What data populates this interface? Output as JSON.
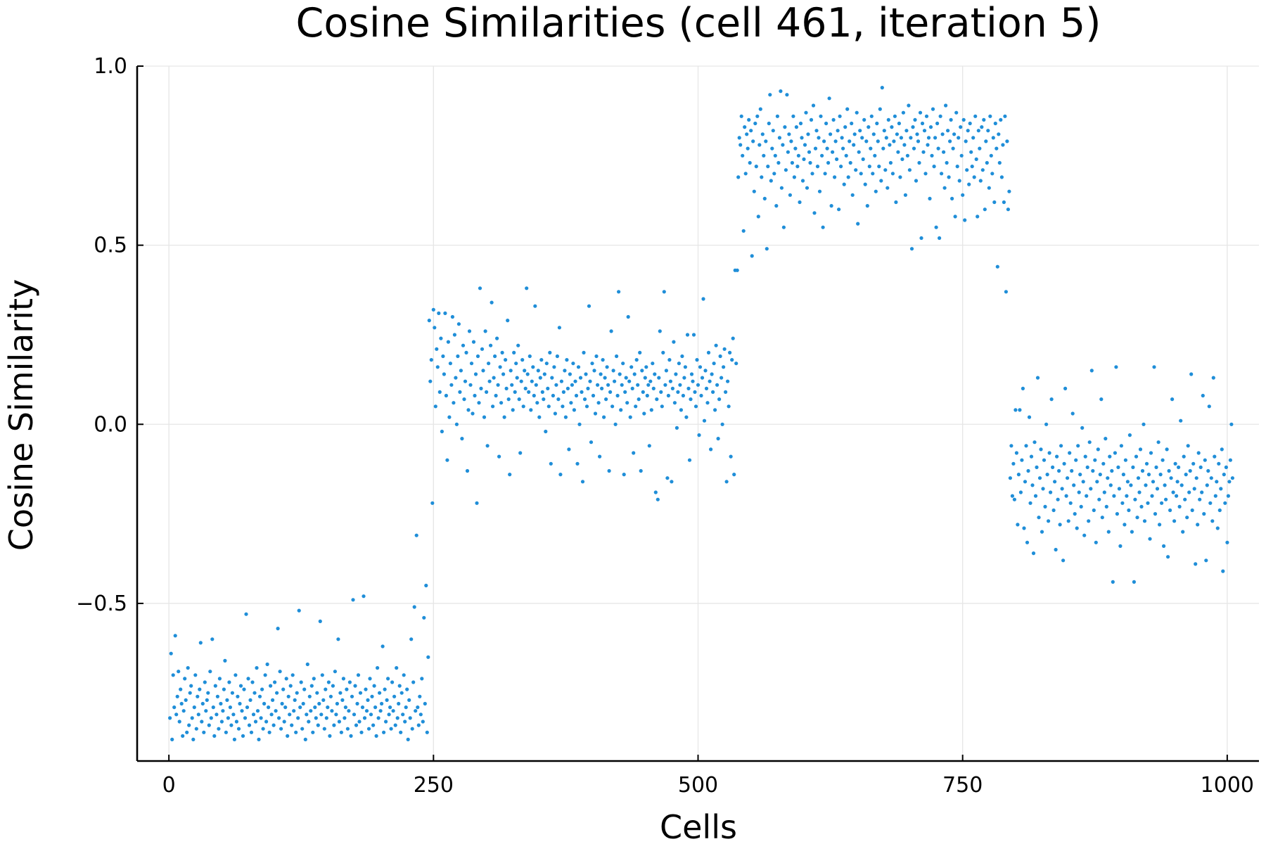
{
  "chart_data": {
    "type": "scatter",
    "title": "Cosine Similarities (cell 461, iteration 5)",
    "xlabel": "Cells",
    "ylabel": "Cosine Similarity",
    "xlim": [
      -30,
      1030
    ],
    "ylim": [
      -0.94,
      1.0
    ],
    "xticks": [
      0,
      250,
      500,
      750,
      1000
    ],
    "xtick_labels": [
      "0",
      "250",
      "500",
      "750",
      "1000"
    ],
    "yticks": [
      -0.5,
      0.0,
      0.5,
      1.0
    ],
    "ytick_labels": [
      "−0.5",
      "0.0",
      "0.5",
      "1.0"
    ],
    "grid": true,
    "legend": "none",
    "point_color": "#1f8ed8",
    "series": [
      {
        "x_start": 1,
        "x_step": 1,
        "values": [
          -0.82,
          -0.64,
          -0.88,
          -0.7,
          -0.79,
          -0.59,
          -0.81,
          -0.76,
          -0.69,
          -0.83,
          -0.74,
          -0.78,
          -0.87,
          -0.8,
          -0.71,
          -0.77,
          -0.86,
          -0.68,
          -0.84,
          -0.75,
          -0.73,
          -0.82,
          -0.88,
          -0.79,
          -0.7,
          -0.85,
          -0.76,
          -0.81,
          -0.74,
          -0.61,
          -0.83,
          -0.78,
          -0.86,
          -0.72,
          -0.8,
          -0.77,
          -0.75,
          -0.84,
          -0.69,
          -0.82,
          -0.6,
          -0.79,
          -0.87,
          -0.73,
          -0.81,
          -0.76,
          -0.85,
          -0.71,
          -0.78,
          -0.83,
          -0.8,
          -0.74,
          -0.66,
          -0.86,
          -0.77,
          -0.82,
          -0.72,
          -0.79,
          -0.84,
          -0.75,
          -0.81,
          -0.88,
          -0.7,
          -0.83,
          -0.76,
          -0.85,
          -0.78,
          -0.73,
          -0.8,
          -0.87,
          -0.74,
          -0.82,
          -0.53,
          -0.79,
          -0.71,
          -0.84,
          -0.77,
          -0.86,
          -0.72,
          -0.81,
          -0.75,
          -0.83,
          -0.68,
          -0.8,
          -0.88,
          -0.76,
          -0.82,
          -0.74,
          -0.85,
          -0.78,
          -0.7,
          -0.83,
          -0.67,
          -0.79,
          -0.86,
          -0.73,
          -0.81,
          -0.77,
          -0.84,
          -0.72,
          -0.8,
          -0.75,
          -0.57,
          -0.82,
          -0.69,
          -0.85,
          -0.78,
          -0.74,
          -0.83,
          -0.79,
          -0.71,
          -0.87,
          -0.76,
          -0.81,
          -0.73,
          -0.84,
          -0.7,
          -0.8,
          -0.77,
          -0.86,
          -0.75,
          -0.82,
          -0.52,
          -0.79,
          -0.72,
          -0.85,
          -0.78,
          -0.74,
          -0.88,
          -0.81,
          -0.67,
          -0.83,
          -0.76,
          -0.8,
          -0.73,
          -0.86,
          -0.71,
          -0.79,
          -0.82,
          -0.75,
          -0.84,
          -0.78,
          -0.55,
          -0.81,
          -0.7,
          -0.77,
          -0.85,
          -0.74,
          -0.82,
          -0.79,
          -0.72,
          -0.87,
          -0.76,
          -0.8,
          -0.73,
          -0.84,
          -0.69,
          -0.81,
          -0.78,
          -0.6,
          -0.83,
          -0.75,
          -0.86,
          -0.77,
          -0.71,
          -0.82,
          -0.79,
          -0.74,
          -0.85,
          -0.8,
          -0.72,
          -0.87,
          -0.76,
          -0.49,
          -0.81,
          -0.73,
          -0.84,
          -0.78,
          -0.7,
          -0.83,
          -0.75,
          -0.86,
          -0.79,
          -0.48,
          -0.82,
          -0.74,
          -0.8,
          -0.77,
          -0.85,
          -0.71,
          -0.81,
          -0.76,
          -0.84,
          -0.73,
          -0.79,
          -0.87,
          -0.68,
          -0.82,
          -0.75,
          -0.8,
          -0.78,
          -0.62,
          -0.86,
          -0.74,
          -0.83,
          -0.77,
          -0.71,
          -0.81,
          -0.79,
          -0.85,
          -0.72,
          -0.8,
          -0.76,
          -0.84,
          -0.68,
          -0.82,
          -0.78,
          -0.73,
          -0.86,
          -0.75,
          -0.81,
          -0.7,
          -0.83,
          -0.79,
          -0.74,
          -0.88,
          -0.77,
          -0.82,
          -0.6,
          -0.85,
          -0.72,
          -0.51,
          -0.8,
          -0.31,
          -0.79,
          -0.84,
          -0.76,
          -0.81,
          -0.71,
          -0.83,
          -0.54,
          -0.78,
          -0.45,
          -0.86,
          -0.65,
          0.29,
          0.12,
          0.18,
          -0.22,
          0.32,
          0.27,
          0.05,
          0.21,
          0.16,
          0.31,
          0.09,
          0.24,
          -0.02,
          0.19,
          0.14,
          0.31,
          0.08,
          -0.1,
          0.23,
          0.02,
          0.17,
          0.11,
          0.3,
          0.06,
          0.25,
          0.13,
          0.0,
          0.19,
          0.28,
          0.09,
          0.15,
          -0.04,
          0.22,
          0.07,
          0.12,
          0.2,
          -0.13,
          0.04,
          0.26,
          0.11,
          0.17,
          0.03,
          0.23,
          0.08,
          0.14,
          -0.22,
          0.19,
          0.06,
          0.38,
          0.1,
          0.21,
          0.15,
          0.02,
          0.26,
          0.09,
          -0.06,
          0.17,
          0.12,
          0.22,
          0.34,
          0.05,
          0.13,
          0.19,
          0.08,
          0.24,
          0.11,
          -0.09,
          0.16,
          0.06,
          0.2,
          0.14,
          0.02,
          0.18,
          0.1,
          0.29,
          0.07,
          -0.14,
          0.15,
          0.11,
          0.04,
          0.2,
          0.09,
          0.17,
          0.13,
          0.22,
          0.07,
          -0.08,
          0.12,
          0.18,
          0.05,
          0.15,
          0.1,
          0.38,
          0.14,
          0.09,
          0.19,
          0.04,
          0.12,
          0.16,
          0.08,
          0.33,
          0.11,
          0.06,
          0.15,
          0.02,
          0.13,
          0.18,
          0.09,
          0.07,
          0.14,
          -0.02,
          0.17,
          0.1,
          0.05,
          0.2,
          -0.11,
          0.13,
          0.08,
          0.16,
          0.03,
          0.11,
          0.19,
          0.07,
          0.27,
          -0.14,
          0.12,
          0.05,
          0.09,
          0.15,
          0.02,
          0.18,
          0.1,
          -0.07,
          0.14,
          0.06,
          0.11,
          0.17,
          0.04,
          0.12,
          0.08,
          -0.11,
          0.16,
          0.0,
          0.13,
          0.09,
          -0.16,
          0.2,
          0.07,
          0.14,
          0.05,
          0.1,
          0.33,
          0.12,
          -0.05,
          0.17,
          0.08,
          0.15,
          0.03,
          0.19,
          0.11,
          0.06,
          -0.09,
          0.14,
          0.1,
          0.18,
          0.02,
          0.13,
          0.07,
          0.16,
          0.11,
          -0.13,
          0.09,
          0.26,
          0.05,
          0.15,
          0.12,
          0.0,
          0.19,
          0.08,
          0.37,
          0.14,
          0.04,
          0.11,
          0.17,
          -0.14,
          0.09,
          0.13,
          0.06,
          0.3,
          0.12,
          0.02,
          0.16,
          0.1,
          -0.08,
          0.14,
          0.05,
          0.18,
          0.11,
          0.07,
          0.2,
          -0.13,
          0.15,
          0.09,
          0.03,
          0.13,
          0.16,
          0.08,
          0.11,
          -0.06,
          0.12,
          0.04,
          0.17,
          0.1,
          0.14,
          -0.19,
          0.07,
          -0.21,
          0.13,
          0.26,
          0.09,
          0.05,
          0.2,
          0.37,
          0.11,
          0.15,
          -0.15,
          0.08,
          0.18,
          0.12,
          -0.16,
          0.1,
          0.23,
          0.06,
          0.14,
          -0.01,
          0.09,
          0.17,
          0.11,
          0.04,
          0.19,
          0.08,
          0.13,
          0.16,
          0.02,
          0.25,
          0.1,
          -0.1,
          0.07,
          0.14,
          0.12,
          0.25,
          0.09,
          0.05,
          0.18,
          0.11,
          -0.03,
          0.16,
          0.08,
          0.13,
          0.35,
          0.01,
          0.15,
          0.1,
          0.06,
          0.2,
          0.12,
          -0.07,
          0.14,
          0.09,
          0.17,
          0.04,
          0.22,
          0.11,
          -0.04,
          0.07,
          0.19,
          0.13,
          0.0,
          0.16,
          0.21,
          0.09,
          -0.16,
          0.12,
          0.05,
          0.2,
          -0.09,
          0.18,
          0.24,
          -0.14,
          0.43,
          0.17,
          0.43,
          0.69,
          0.8,
          0.78,
          0.86,
          0.75,
          0.54,
          0.83,
          0.7,
          0.81,
          0.77,
          0.85,
          0.73,
          0.82,
          0.47,
          0.79,
          0.65,
          0.84,
          0.72,
          0.86,
          0.58,
          0.78,
          0.88,
          0.69,
          0.81,
          0.75,
          0.63,
          0.79,
          0.49,
          0.72,
          0.84,
          0.92,
          0.68,
          0.77,
          0.82,
          0.7,
          0.75,
          0.61,
          0.86,
          0.73,
          0.8,
          0.93,
          0.66,
          0.78,
          0.55,
          0.83,
          0.71,
          0.92,
          0.76,
          0.81,
          0.64,
          0.79,
          0.73,
          0.86,
          0.69,
          0.77,
          0.83,
          0.72,
          0.75,
          0.62,
          0.84,
          0.8,
          0.68,
          0.74,
          0.78,
          0.87,
          0.66,
          0.81,
          0.76,
          0.73,
          0.85,
          0.7,
          0.89,
          0.59,
          0.77,
          0.82,
          0.72,
          0.8,
          0.65,
          0.86,
          0.75,
          0.55,
          0.79,
          0.7,
          0.84,
          0.77,
          0.73,
          0.91,
          0.81,
          0.61,
          0.76,
          0.85,
          0.69,
          0.79,
          0.74,
          0.82,
          0.6,
          0.86,
          0.72,
          0.8,
          0.77,
          0.67,
          0.83,
          0.75,
          0.88,
          0.69,
          0.79,
          0.73,
          0.84,
          0.64,
          0.78,
          0.81,
          0.71,
          0.87,
          0.56,
          0.76,
          0.82,
          0.7,
          0.8,
          0.74,
          0.85,
          0.67,
          0.79,
          0.61,
          0.83,
          0.72,
          0.77,
          0.86,
          0.7,
          0.81,
          0.75,
          0.65,
          0.84,
          0.79,
          0.72,
          0.88,
          0.68,
          0.94,
          0.77,
          0.82,
          0.71,
          0.8,
          0.66,
          0.85,
          0.78,
          0.73,
          0.83,
          0.7,
          0.79,
          0.86,
          0.62,
          0.81,
          0.76,
          0.84,
          0.69,
          0.8,
          0.74,
          0.87,
          0.78,
          0.64,
          0.82,
          0.75,
          0.89,
          0.71,
          0.8,
          0.49,
          0.83,
          0.77,
          0.85,
          0.68,
          0.81,
          0.79,
          0.73,
          0.87,
          0.52,
          0.84,
          0.76,
          0.82,
          0.7,
          0.86,
          0.78,
          0.8,
          0.63,
          0.83,
          0.75,
          0.88,
          0.72,
          0.8,
          0.55,
          0.84,
          0.77,
          0.52,
          0.86,
          0.7,
          0.81,
          0.76,
          0.66,
          0.89,
          0.73,
          0.82,
          0.69,
          0.79,
          0.85,
          0.63,
          0.77,
          0.81,
          0.58,
          0.87,
          0.72,
          0.8,
          0.68,
          0.83,
          0.75,
          0.64,
          0.85,
          0.57,
          0.79,
          0.71,
          0.82,
          0.67,
          0.84,
          0.76,
          0.72,
          0.8,
          0.69,
          0.86,
          0.74,
          0.58,
          0.82,
          0.77,
          0.68,
          0.83,
          0.71,
          0.85,
          0.6,
          0.79,
          0.73,
          0.82,
          0.66,
          0.86,
          0.75,
          0.7,
          0.8,
          0.62,
          0.84,
          0.77,
          0.44,
          0.81,
          0.73,
          0.85,
          0.69,
          0.78,
          0.62,
          0.86,
          0.37,
          0.79,
          0.6,
          0.65,
          -0.15,
          -0.06,
          -0.2,
          -0.11,
          -0.21,
          0.04,
          -0.08,
          -0.28,
          -0.14,
          0.04,
          -0.19,
          -0.1,
          0.1,
          -0.29,
          -0.16,
          -0.06,
          -0.33,
          -0.13,
          0.02,
          -0.22,
          -0.09,
          -0.17,
          -0.36,
          -0.05,
          -0.2,
          -0.12,
          0.13,
          -0.26,
          -0.15,
          -0.07,
          -0.3,
          -0.18,
          -0.1,
          -0.23,
          0.0,
          -0.14,
          -0.27,
          -0.08,
          -0.19,
          0.07,
          -0.12,
          -0.24,
          -0.16,
          -0.35,
          -0.09,
          -0.21,
          -0.13,
          -0.28,
          -0.06,
          -0.18,
          -0.38,
          -0.11,
          0.1,
          -0.2,
          -0.15,
          -0.27,
          -0.08,
          -0.22,
          -0.13,
          0.03,
          -0.17,
          -0.25,
          -0.1,
          -0.29,
          -0.06,
          -0.19,
          -0.14,
          -0.23,
          -0.01,
          -0.16,
          -0.31,
          -0.09,
          -0.2,
          -0.12,
          -0.27,
          -0.05,
          -0.18,
          0.15,
          -0.13,
          -0.24,
          -0.1,
          -0.33,
          -0.16,
          -0.07,
          -0.21,
          -0.14,
          0.07,
          -0.26,
          -0.11,
          -0.19,
          -0.04,
          -0.23,
          -0.15,
          -0.3,
          -0.09,
          -0.17,
          -0.13,
          -0.44,
          -0.2,
          -0.08,
          0.16,
          -0.25,
          -0.12,
          -0.18,
          -0.34,
          -0.06,
          -0.22,
          -0.14,
          -0.28,
          -0.1,
          -0.2,
          -0.16,
          -0.24,
          -0.03,
          -0.17,
          -0.3,
          -0.12,
          -0.44,
          -0.21,
          -0.09,
          -0.26,
          -0.15,
          -0.19,
          -0.07,
          -0.23,
          -0.13,
          0.0,
          -0.27,
          -0.17,
          -0.11,
          -0.22,
          -0.14,
          -0.32,
          -0.08,
          -0.2,
          -0.16,
          0.16,
          -0.25,
          -0.12,
          -0.18,
          -0.05,
          -0.28,
          -0.14,
          -0.22,
          -0.1,
          -0.34,
          -0.17,
          -0.21,
          -0.07,
          -0.37,
          -0.13,
          -0.24,
          -0.15,
          0.07,
          -0.19,
          -0.27,
          -0.11,
          -0.2,
          -0.16,
          -0.12,
          -0.23,
          0.01,
          -0.17,
          -0.3,
          -0.09,
          -0.21,
          -0.14,
          -0.26,
          -0.06,
          -0.19,
          -0.13,
          0.14,
          -0.24,
          -0.11,
          -0.18,
          -0.39,
          -0.15,
          -0.28,
          -0.08,
          -0.21,
          -0.12,
          -0.19,
          0.08,
          -0.25,
          -0.1,
          -0.38,
          -0.17,
          -0.13,
          0.05,
          -0.22,
          -0.15,
          -0.27,
          0.13,
          -0.09,
          -0.2,
          -0.16,
          -0.29,
          -0.11,
          -0.24,
          -0.18,
          -0.07,
          -0.41,
          -0.14,
          -0.22,
          -0.12,
          -0.33,
          -0.2,
          -0.16,
          -0.1,
          0.0,
          -0.15
        ]
      }
    ]
  }
}
